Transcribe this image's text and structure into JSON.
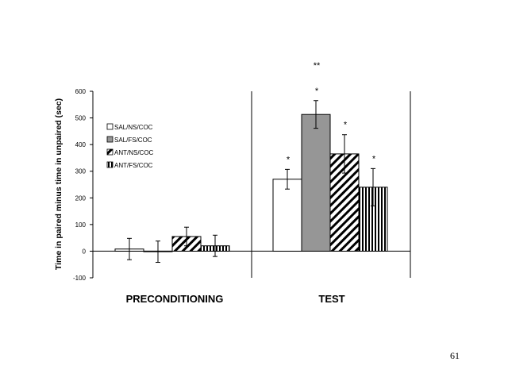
{
  "page_number": "61",
  "chart_data": {
    "type": "bar",
    "ylabel": "Time in paired minus time in unpaired (sec)",
    "ylim": [
      -100,
      600
    ],
    "yticks": [
      -100,
      0,
      100,
      200,
      300,
      400,
      500,
      600
    ],
    "categories": [
      "PRECONDITIONING",
      "TEST"
    ],
    "series": [
      {
        "name": "SAL/NS/COC",
        "fill": "white",
        "values": [
          8,
          270
        ],
        "errors": [
          40,
          37
        ]
      },
      {
        "name": "SAL/FS/COC",
        "fill": "gray",
        "values": [
          -2,
          513
        ],
        "errors": [
          40,
          52
        ]
      },
      {
        "name": "ANT/NS/COC",
        "fill": "diagonal",
        "values": [
          55,
          365
        ],
        "errors": [
          35,
          72
        ]
      },
      {
        "name": "ANT/FS/COC",
        "fill": "vertical",
        "values": [
          20,
          240
        ],
        "errors": [
          40,
          70
        ]
      }
    ],
    "annotations": [
      {
        "category": "TEST",
        "series": "SAL/NS/COC",
        "text": "*"
      },
      {
        "category": "TEST",
        "series": "SAL/FS/COC",
        "text": "*"
      },
      {
        "category": "TEST",
        "series": "SAL/FS/COC",
        "text": "**"
      },
      {
        "category": "TEST",
        "series": "ANT/NS/COC",
        "text": "*"
      },
      {
        "category": "TEST",
        "series": "ANT/FS/COC",
        "text": "*"
      }
    ],
    "colors": {
      "gray": "#969696",
      "outline": "#000000",
      "background": "#ffffff"
    }
  }
}
